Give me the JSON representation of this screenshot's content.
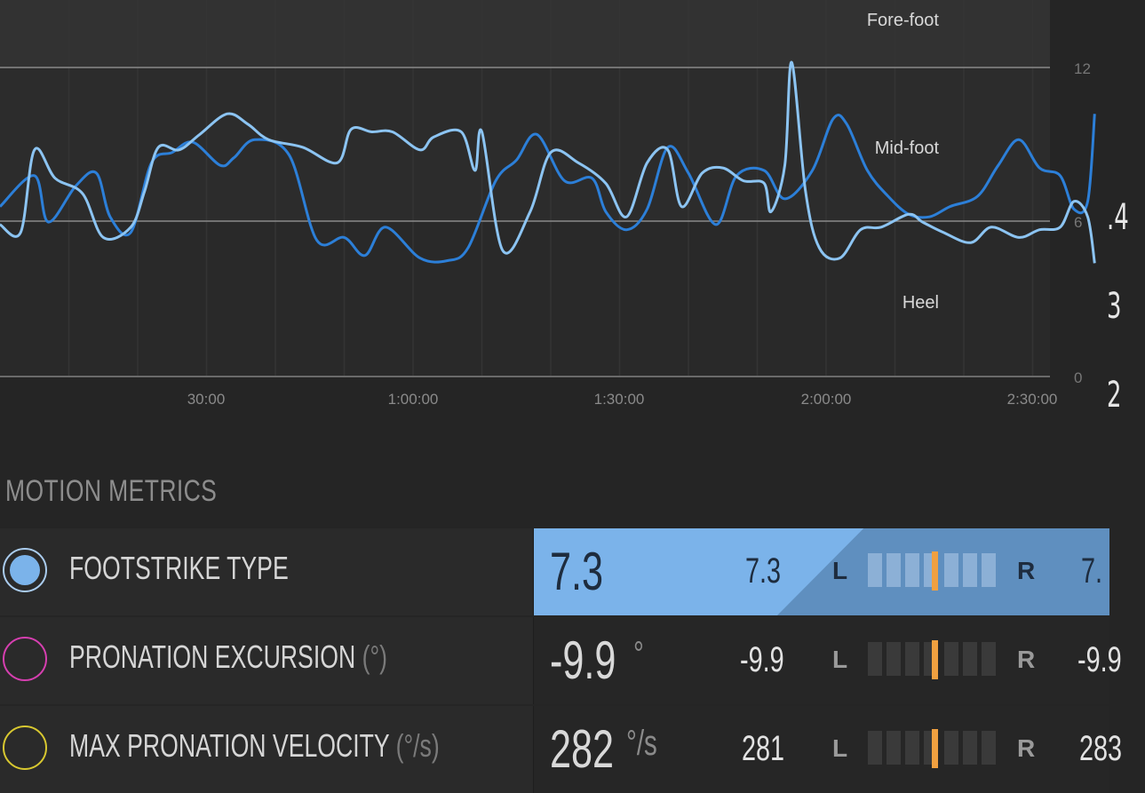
{
  "chart": {
    "zone_labels": [
      "Fore-foot",
      "Mid-foot",
      "Heel"
    ],
    "y_ticks": [
      "12",
      "6",
      "0"
    ],
    "x_ticks": [
      "30:00",
      "1:00:00",
      "1:30:00",
      "2:00:00",
      "2:30:00"
    ],
    "right_partial_values": [
      ".4",
      "3",
      "2"
    ]
  },
  "chart_data": {
    "type": "line",
    "x_unit": "elapsed time",
    "y_range": [
      0,
      12
    ],
    "zones": [
      "Heel",
      "Mid-foot",
      "Fore-foot"
    ],
    "series": [
      {
        "color": "#2c7fd8",
        "points": [
          [
            0,
            6.6
          ],
          [
            5,
            7.8
          ],
          [
            7,
            6.0
          ],
          [
            11,
            7.4
          ],
          [
            14,
            7.9
          ],
          [
            16,
            6.2
          ],
          [
            19,
            5.6
          ],
          [
            22,
            8.3
          ],
          [
            25,
            8.7
          ],
          [
            28,
            9.1
          ],
          [
            32,
            8.2
          ],
          [
            34,
            8.5
          ],
          [
            37,
            9.2
          ],
          [
            42,
            8.6
          ],
          [
            46,
            5.3
          ],
          [
            50,
            5.4
          ],
          [
            53,
            4.7
          ],
          [
            56,
            5.8
          ],
          [
            61,
            4.6
          ],
          [
            65,
            4.5
          ],
          [
            68,
            5.0
          ],
          [
            72,
            7.6
          ],
          [
            75,
            8.4
          ],
          [
            78,
            9.4
          ],
          [
            82,
            7.6
          ],
          [
            86,
            7.7
          ],
          [
            88,
            6.4
          ],
          [
            91,
            5.7
          ],
          [
            94,
            6.5
          ],
          [
            97,
            8.9
          ],
          [
            100,
            7.9
          ],
          [
            104,
            5.9
          ],
          [
            107,
            7.8
          ],
          [
            111,
            8.0
          ],
          [
            114,
            6.9
          ],
          [
            118,
            8.0
          ],
          [
            121,
            10.0
          ],
          [
            123,
            9.8
          ],
          [
            126,
            8.0
          ],
          [
            129,
            7.0
          ],
          [
            132,
            6.3
          ],
          [
            135,
            6.2
          ],
          [
            138,
            6.6
          ],
          [
            142,
            7.0
          ],
          [
            145,
            8.2
          ],
          [
            148,
            9.2
          ],
          [
            151,
            8.1
          ],
          [
            154,
            7.8
          ],
          [
            156,
            6.5
          ],
          [
            158,
            6.8
          ],
          [
            159,
            10.2
          ]
        ]
      },
      {
        "color": "#8cc4f2",
        "points": [
          [
            0,
            5.9
          ],
          [
            3,
            5.6
          ],
          [
            5,
            8.8
          ],
          [
            8,
            7.7
          ],
          [
            12,
            7.1
          ],
          [
            15,
            5.4
          ],
          [
            19,
            5.8
          ],
          [
            21,
            7.2
          ],
          [
            23,
            8.9
          ],
          [
            26,
            8.8
          ],
          [
            29,
            9.4
          ],
          [
            33,
            10.2
          ],
          [
            36,
            9.8
          ],
          [
            39,
            9.2
          ],
          [
            44,
            8.9
          ],
          [
            49,
            8.3
          ],
          [
            51,
            9.6
          ],
          [
            54,
            9.5
          ],
          [
            57,
            9.5
          ],
          [
            61,
            8.8
          ],
          [
            63,
            9.3
          ],
          [
            67,
            9.5
          ],
          [
            69,
            8.0
          ],
          [
            70,
            9.5
          ],
          [
            73,
            4.9
          ],
          [
            77,
            6.4
          ],
          [
            80,
            8.7
          ],
          [
            84,
            8.3
          ],
          [
            88,
            7.5
          ],
          [
            91,
            6.2
          ],
          [
            94,
            8.3
          ],
          [
            97,
            8.8
          ],
          [
            99,
            6.6
          ],
          [
            102,
            7.9
          ],
          [
            105,
            8.1
          ],
          [
            108,
            7.6
          ],
          [
            111,
            7.5
          ],
          [
            112,
            6.4
          ],
          [
            114,
            8.2
          ],
          [
            115,
            12.2
          ],
          [
            117,
            7.2
          ],
          [
            119,
            5.0
          ],
          [
            122,
            4.6
          ],
          [
            125,
            5.7
          ],
          [
            128,
            5.8
          ],
          [
            132,
            6.3
          ],
          [
            134,
            6.0
          ],
          [
            137,
            5.6
          ],
          [
            141,
            5.2
          ],
          [
            144,
            5.8
          ],
          [
            148,
            5.4
          ],
          [
            151,
            5.7
          ],
          [
            154,
            5.8
          ],
          [
            156,
            6.8
          ],
          [
            158,
            6.2
          ],
          [
            159,
            4.4
          ]
        ]
      }
    ]
  },
  "section_title": "MOTION METRICS",
  "metrics": [
    {
      "name": "FOOTSTRIKE TYPE",
      "unit": "",
      "value": "7.3",
      "value_unit": "",
      "left": "7.3",
      "L": "L",
      "R": "R",
      "right": "7.",
      "balance": 0.5,
      "color": "#7bb3ea",
      "selected": true
    },
    {
      "name": "PRONATION EXCURSION ",
      "unit": "(°)",
      "value": "-9.9",
      "value_unit": "°",
      "left": "-9.9",
      "L": "L",
      "R": "R",
      "right": "-9.9",
      "balance": 0.5,
      "color": "#d63fb0",
      "selected": false
    },
    {
      "name": "MAX PRONATION VELOCITY ",
      "unit": "(°/s)",
      "value": "282",
      "value_unit": "°/s",
      "left": "281",
      "L": "L",
      "R": "R",
      "right": "283",
      "balance": 0.5,
      "color": "#d8c830",
      "selected": false
    }
  ]
}
